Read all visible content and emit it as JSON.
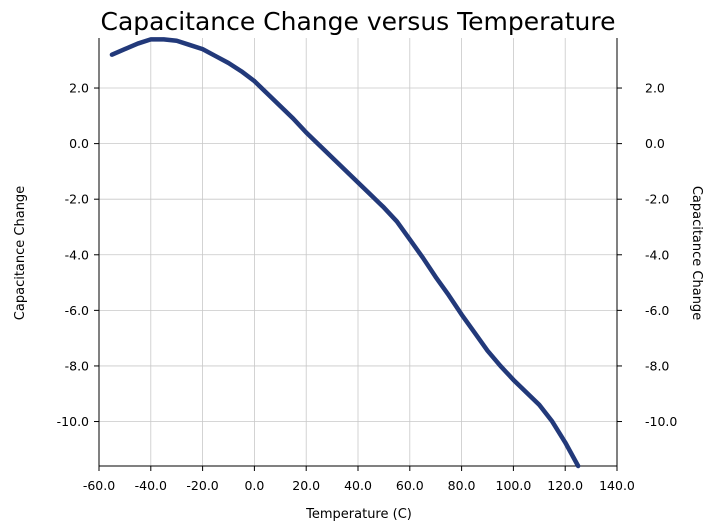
{
  "chart_data": {
    "type": "line",
    "title": "Capacitance Change versus Temperature",
    "xlabel": "Temperature (C)",
    "ylabel": "Capacitance Change",
    "ylabel_right": "Capacitance Change",
    "xlim": [
      -60,
      140
    ],
    "ylim": [
      -11.6,
      3.8
    ],
    "x_ticks": [
      -60,
      -40,
      -20,
      0,
      20,
      40,
      60,
      80,
      100,
      120,
      140
    ],
    "x_tick_labels": [
      "-60.0",
      "-40.0",
      "-20.0",
      "0.0",
      "20.0",
      "40.0",
      "60.0",
      "80.0",
      "100.0",
      "120.0",
      "140.0"
    ],
    "y_ticks": [
      2,
      0,
      -2,
      -4,
      -6,
      -8,
      -10
    ],
    "y_tick_labels": [
      "2.0",
      "0.0",
      "-2.0",
      "-4.0",
      "-6.0",
      "-8.0",
      "-10.0"
    ],
    "grid": true,
    "line_color": "#22397a",
    "series": [
      {
        "x": [
          -55,
          -50,
          -45,
          -40,
          -35,
          -30,
          -25,
          -20,
          -15,
          -10,
          -5,
          0,
          5,
          10,
          15,
          20,
          25,
          30,
          35,
          40,
          45,
          50,
          55,
          60,
          65,
          70,
          75,
          80,
          85,
          90,
          95,
          100,
          105,
          110,
          115,
          120,
          125
        ],
        "y": [
          3.2,
          3.4,
          3.6,
          3.75,
          3.75,
          3.7,
          3.55,
          3.4,
          3.15,
          2.9,
          2.6,
          2.25,
          1.8,
          1.35,
          0.9,
          0.4,
          -0.05,
          -0.5,
          -0.95,
          -1.4,
          -1.85,
          -2.3,
          -2.8,
          -3.45,
          -4.1,
          -4.8,
          -5.45,
          -6.15,
          -6.8,
          -7.45,
          -8.0,
          -8.5,
          -8.95,
          -9.4,
          -10.0,
          -10.75,
          -11.6
        ]
      }
    ]
  }
}
